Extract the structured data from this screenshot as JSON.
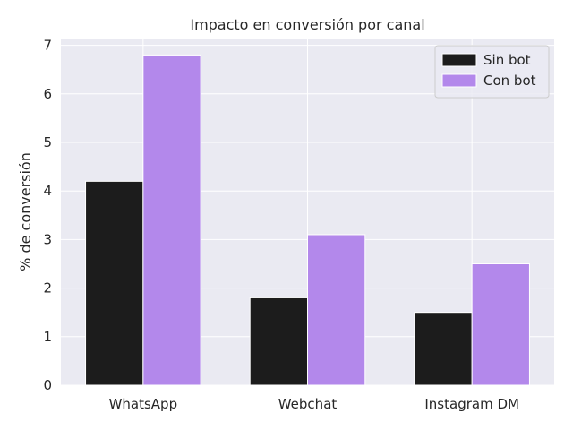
{
  "chart_data": {
    "type": "bar",
    "title": "Impacto en conversión por canal",
    "xlabel": "",
    "ylabel": "% de conversión",
    "categories": [
      "WhatsApp",
      "Webchat",
      "Instagram DM"
    ],
    "series": [
      {
        "name": "Sin bot",
        "values": [
          4.2,
          1.8,
          1.5
        ],
        "color": "#1c1c1c"
      },
      {
        "name": "Con bot",
        "values": [
          6.8,
          3.1,
          2.5
        ],
        "color": "#b388eb"
      }
    ],
    "ylim": [
      0,
      7.14
    ],
    "yticks": [
      "0",
      "1",
      "2",
      "3",
      "4",
      "5",
      "6",
      "7"
    ],
    "grid": true,
    "legend_position": "top-right",
    "background_color": "#eaeaf2",
    "grid_color": "#ffffff"
  }
}
